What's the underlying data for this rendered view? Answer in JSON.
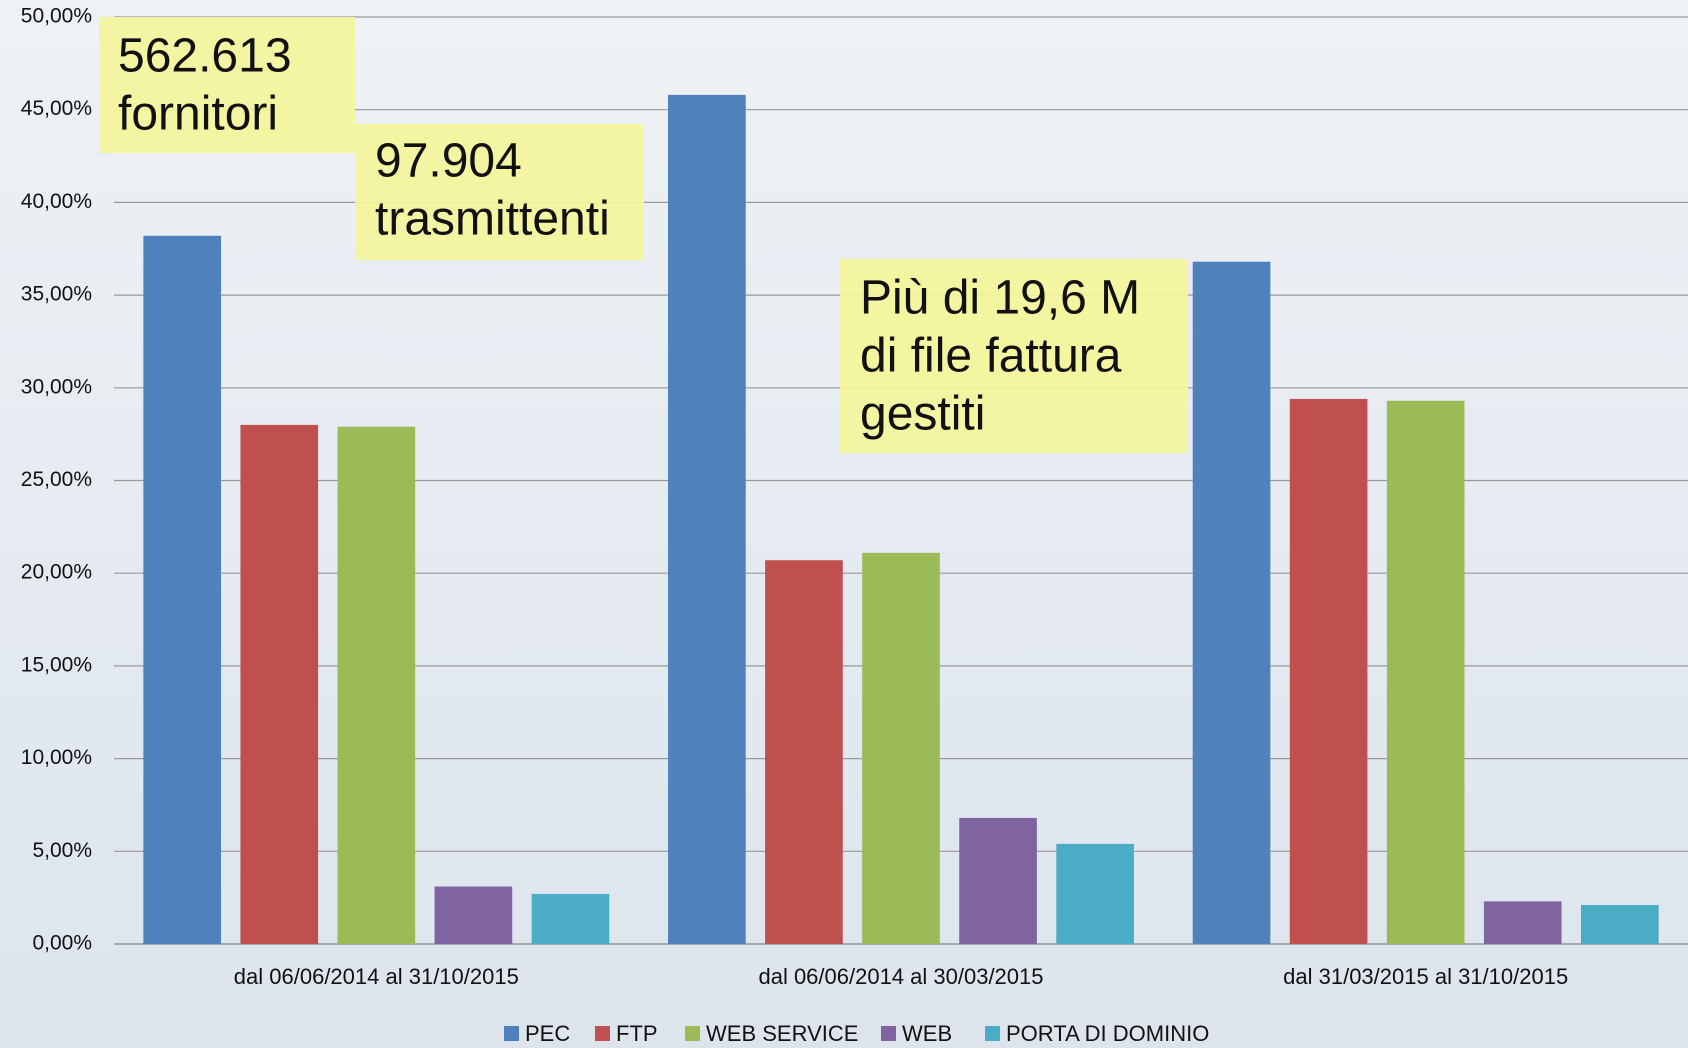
{
  "chart_data": {
    "type": "bar",
    "categories": [
      "dal 06/06/2014 al 31/10/2015",
      "dal 06/06/2014 al 30/03/2015",
      "dal 31/03/2015 al 31/10/2015"
    ],
    "series": [
      {
        "name": "PEC",
        "color": "#4f81bd",
        "values": [
          38.2,
          45.8,
          36.8
        ]
      },
      {
        "name": "FTP",
        "color": "#c0504d",
        "values": [
          28.0,
          20.7,
          29.4
        ]
      },
      {
        "name": "WEB SERVICE",
        "color": "#9bbb59",
        "values": [
          27.9,
          21.1,
          29.3
        ]
      },
      {
        "name": "WEB",
        "color": "#8064a2",
        "values": [
          3.1,
          6.8,
          2.3
        ]
      },
      {
        "name": "PORTA DI DOMINIO",
        "color": "#4bacc6",
        "values": [
          2.7,
          5.4,
          2.1
        ]
      }
    ],
    "ylim": [
      0,
      50
    ],
    "yticks": [
      {
        "value": 0,
        "label": "0,00%"
      },
      {
        "value": 5,
        "label": "5,00%"
      },
      {
        "value": 10,
        "label": "10,00%"
      },
      {
        "value": 15,
        "label": "15,00%"
      },
      {
        "value": 20,
        "label": "20,00%"
      },
      {
        "value": 25,
        "label": "25,00%"
      },
      {
        "value": 30,
        "label": "30,00%"
      },
      {
        "value": 35,
        "label": "35,00%"
      },
      {
        "value": 40,
        "label": "40,00%"
      },
      {
        "value": 45,
        "label": "45,00%"
      },
      {
        "value": 50,
        "label": "50,00%"
      }
    ],
    "grid": true,
    "legend": "bottom",
    "annotations": [
      {
        "lines": [
          "562.613",
          "fornitori"
        ]
      },
      {
        "lines": [
          "97.904",
          "trasmittenti"
        ]
      },
      {
        "lines": [
          "Più di 19,6 M",
          "di file fattura",
          "gestiti"
        ]
      }
    ]
  }
}
